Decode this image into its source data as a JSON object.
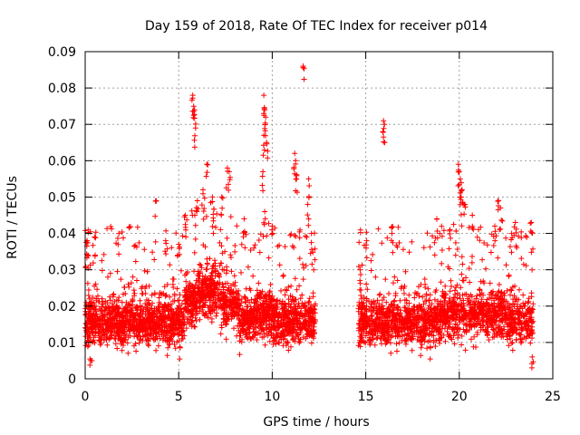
{
  "chart_data": {
    "type": "scatter",
    "title": "Day 159 of 2018, Rate Of TEC Index for receiver p014",
    "xlabel": "GPS time / hours",
    "ylabel": "ROTI / TECUs",
    "xlim": [
      0,
      25
    ],
    "ylim": [
      0,
      0.09
    ],
    "x_ticks": [
      0,
      5,
      10,
      15,
      20,
      25
    ],
    "x_tick_labels": [
      "0",
      "5",
      "10",
      "15",
      "20",
      "25"
    ],
    "y_ticks": [
      0,
      0.01,
      0.02,
      0.03,
      0.04,
      0.05,
      0.06,
      0.07,
      0.08,
      0.09
    ],
    "y_tick_labels": [
      "0",
      "0.01",
      "0.02",
      "0.03",
      "0.04",
      "0.05",
      "0.06",
      "0.07",
      "0.08",
      "0.09"
    ],
    "grid": true,
    "marker": "+",
    "color": "#ff0000",
    "series": [
      {
        "name": "ROTI",
        "segments": [
          [
            0,
            12.3
          ],
          [
            14.6,
            23.95
          ]
        ],
        "points": [
          [
            0.1,
            0.038
          ],
          [
            0.15,
            0.034
          ],
          [
            0.3,
            0.005
          ],
          [
            0.5,
            0.039
          ],
          [
            1.8,
            0.04
          ],
          [
            3.8,
            0.049
          ],
          [
            4.3,
            0.038
          ],
          [
            5.0,
            0.037
          ],
          [
            5.35,
            0.045
          ],
          [
            5.75,
            0.078
          ],
          [
            5.8,
            0.075
          ],
          [
            5.85,
            0.074
          ],
          [
            5.9,
            0.069
          ],
          [
            6.0,
            0.049
          ],
          [
            6.3,
            0.052
          ],
          [
            6.5,
            0.059
          ],
          [
            6.8,
            0.05
          ],
          [
            7.3,
            0.05
          ],
          [
            7.6,
            0.058
          ],
          [
            7.7,
            0.057
          ],
          [
            8.5,
            0.044
          ],
          [
            9.55,
            0.078
          ],
          [
            9.6,
            0.074
          ],
          [
            9.65,
            0.072
          ],
          [
            9.55,
            0.067
          ],
          [
            9.7,
            0.065
          ],
          [
            9.5,
            0.057
          ],
          [
            9.6,
            0.046
          ],
          [
            10.0,
            0.042
          ],
          [
            11.2,
            0.062
          ],
          [
            11.25,
            0.06
          ],
          [
            11.3,
            0.055
          ],
          [
            11.65,
            0.086
          ],
          [
            11.95,
            0.055
          ],
          [
            11.9,
            0.048
          ],
          [
            12.1,
            0.04
          ],
          [
            14.7,
            0.03
          ],
          [
            15.05,
            0.038
          ],
          [
            15.95,
            0.071
          ],
          [
            16.0,
            0.07
          ],
          [
            16.4,
            0.04
          ],
          [
            18.8,
            0.044
          ],
          [
            19.5,
            0.041
          ],
          [
            19.95,
            0.059
          ],
          [
            20.0,
            0.057
          ],
          [
            20.05,
            0.055
          ],
          [
            20.15,
            0.052
          ],
          [
            20.1,
            0.05
          ],
          [
            20.3,
            0.048
          ],
          [
            20.7,
            0.045
          ],
          [
            21.9,
            0.042
          ],
          [
            22.1,
            0.049
          ],
          [
            22.2,
            0.047
          ],
          [
            23.0,
            0.043
          ],
          [
            23.85,
            0.043
          ],
          [
            23.9,
            0.006
          ],
          [
            22.8,
            0.04
          ]
        ]
      }
    ]
  }
}
